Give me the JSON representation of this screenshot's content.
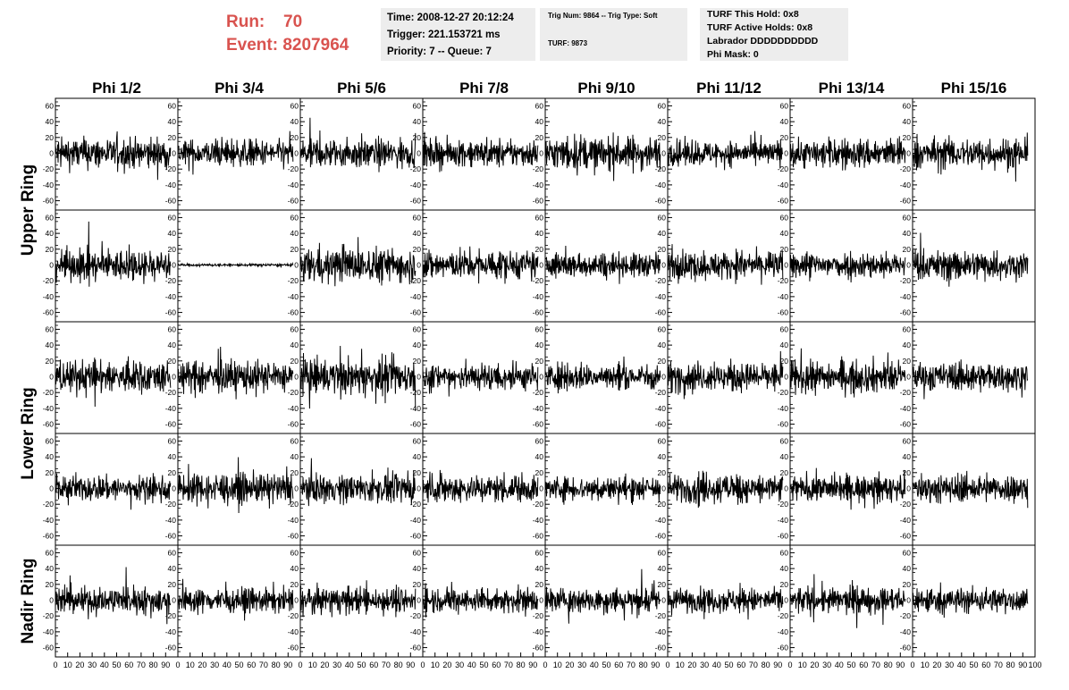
{
  "header": {
    "run_label": "Run:",
    "run_value": "70",
    "event_label": "Event:",
    "event_value": "8207964",
    "time": "Time: 2008-12-27 20:12:24",
    "trigger": "Trigger: 221.153721 ms",
    "priority": "Priority: 7 -- Queue: 7",
    "trig_num": "Trig Num: 9864 -- Trig Type: Soft",
    "turf": "TURF: 9873",
    "turf_hold": "TURF This Hold: 0x8",
    "turf_active": "TURF Active Holds: 0x8",
    "labrador": "Labrador DDDDDDDDDD",
    "phi_mask": "Phi Mask: 0"
  },
  "chart_data": {
    "type": "line",
    "columns": [
      "Phi 1/2",
      "Phi 3/4",
      "Phi 5/6",
      "Phi 7/8",
      "Phi 9/10",
      "Phi 11/12",
      "Phi 13/14",
      "Phi 15/16"
    ],
    "rows": [
      "Upper Ring",
      "",
      "Lower Ring",
      "",
      "Nadir Ring"
    ],
    "row_label_spans": [
      {
        "label": "Upper Ring",
        "rows": [
          0,
          1
        ]
      },
      {
        "label": "Lower Ring",
        "rows": [
          2,
          3
        ]
      },
      {
        "label": "Nadir Ring",
        "rows": [
          4
        ]
      }
    ],
    "xlim": [
      0,
      100
    ],
    "ylim": [
      -65,
      65
    ],
    "x_ticks": [
      0,
      10,
      20,
      30,
      40,
      50,
      60,
      70,
      80,
      90,
      100
    ],
    "y_ticks": [
      -60,
      -40,
      -20,
      0,
      20,
      40,
      60
    ],
    "n_samples": 260,
    "series_scale": [
      [
        18,
        16,
        17,
        15,
        19,
        14,
        17,
        18
      ],
      [
        18,
        1.5,
        20,
        17,
        14,
        16,
        15,
        17
      ],
      [
        19,
        18,
        20,
        16,
        15,
        17,
        18,
        16
      ],
      [
        15,
        17,
        16,
        16,
        14,
        17,
        15,
        16
      ],
      [
        16,
        14,
        15,
        14,
        15,
        14,
        15,
        15
      ]
    ],
    "line_color": "#000000",
    "grid": false
  }
}
